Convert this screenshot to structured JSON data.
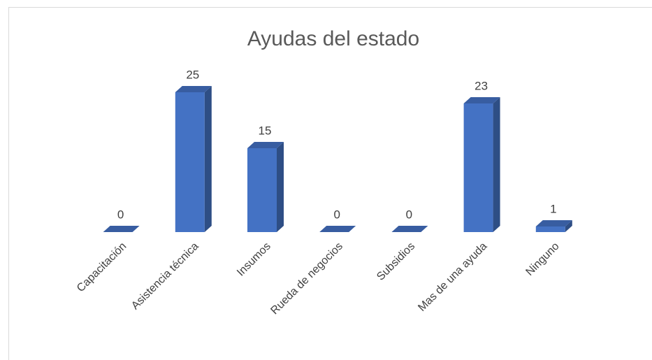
{
  "chart_data": {
    "type": "bar3d",
    "title": "Ayudas del estado",
    "categories": [
      "Capacitación",
      "Asistencia técnica",
      "Insumos",
      "Rueda de negocios",
      "Subsidios",
      "Mas de una ayuda",
      "Ninguno"
    ],
    "values": [
      0,
      25,
      15,
      0,
      0,
      23,
      1
    ],
    "color": "#4472c4"
  }
}
